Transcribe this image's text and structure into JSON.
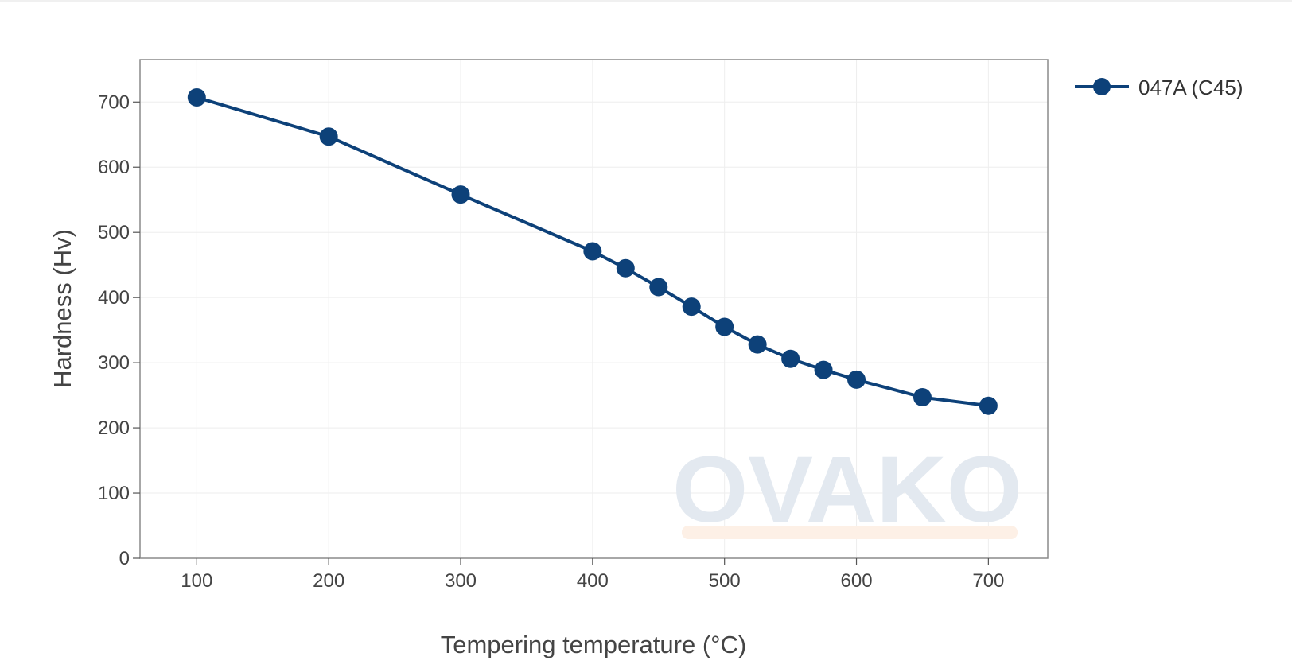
{
  "chart_data": {
    "type": "line",
    "title": "",
    "xlabel": "Tempering temperature (°C)",
    "ylabel": "Hardness (Hv)",
    "xlim": [
      57,
      745
    ],
    "ylim": [
      0,
      765
    ],
    "x_ticks": [
      100,
      200,
      300,
      400,
      500,
      600,
      700
    ],
    "y_ticks": [
      0,
      100,
      200,
      300,
      400,
      500,
      600,
      700
    ],
    "grid": true,
    "legend_position": "top-right",
    "series": [
      {
        "name": "047A (C45)",
        "color": "#0d4179",
        "marker": "circle",
        "x": [
          100,
          200,
          300,
          400,
          425,
          450,
          475,
          500,
          525,
          550,
          575,
          600,
          650,
          700
        ],
        "y": [
          707,
          647,
          558,
          471,
          445,
          416,
          386,
          355,
          328,
          306,
          289,
          274,
          247,
          234
        ]
      }
    ],
    "watermark": {
      "text": "OVAKO",
      "color": "#e3e9f0",
      "accent_color": "#fdf0e6"
    }
  }
}
